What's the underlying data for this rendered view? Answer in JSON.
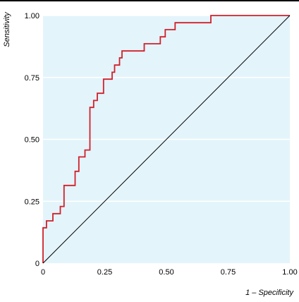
{
  "chart_data": {
    "type": "line",
    "title": "",
    "xlabel": "1 – Specificity",
    "ylabel": "Sensitivity",
    "xlim": [
      0,
      1
    ],
    "ylim": [
      0,
      1
    ],
    "x_ticks": [
      "0",
      "0.25",
      "0.50",
      "0.75",
      "1.00"
    ],
    "y_ticks": [
      "0",
      "0.25",
      "0.50",
      "0.75",
      "1.00"
    ],
    "grid": "horizontal",
    "background_color": "#e4f4fb",
    "grid_color": "#ffffff",
    "series": [
      {
        "color": "#d0202a",
        "step": true,
        "x": [
          0,
          0,
          0.014,
          0.014,
          0.04,
          0.04,
          0.07,
          0.07,
          0.085,
          0.085,
          0.13,
          0.13,
          0.145,
          0.145,
          0.17,
          0.17,
          0.19,
          0.19,
          0.205,
          0.205,
          0.22,
          0.22,
          0.245,
          0.245,
          0.28,
          0.28,
          0.29,
          0.29,
          0.31,
          0.31,
          0.32,
          0.32,
          0.33,
          0.33,
          0.41,
          0.41,
          0.475,
          0.475,
          0.495,
          0.495,
          0.535,
          0.535,
          0.68,
          0.68,
          1.0
        ],
        "y": [
          0,
          0.143,
          0.143,
          0.171,
          0.171,
          0.2,
          0.2,
          0.229,
          0.229,
          0.314,
          0.314,
          0.371,
          0.371,
          0.429,
          0.429,
          0.457,
          0.457,
          0.629,
          0.629,
          0.657,
          0.657,
          0.686,
          0.686,
          0.743,
          0.743,
          0.771,
          0.771,
          0.8,
          0.8,
          0.829,
          0.829,
          0.857,
          0.857,
          0.857,
          0.857,
          0.886,
          0.886,
          0.914,
          0.914,
          0.943,
          0.943,
          0.971,
          0.971,
          1.0,
          1.0
        ]
      },
      {
        "color": "#000000",
        "step": false,
        "x": [
          0,
          1
        ],
        "y": [
          0,
          1
        ]
      }
    ]
  }
}
